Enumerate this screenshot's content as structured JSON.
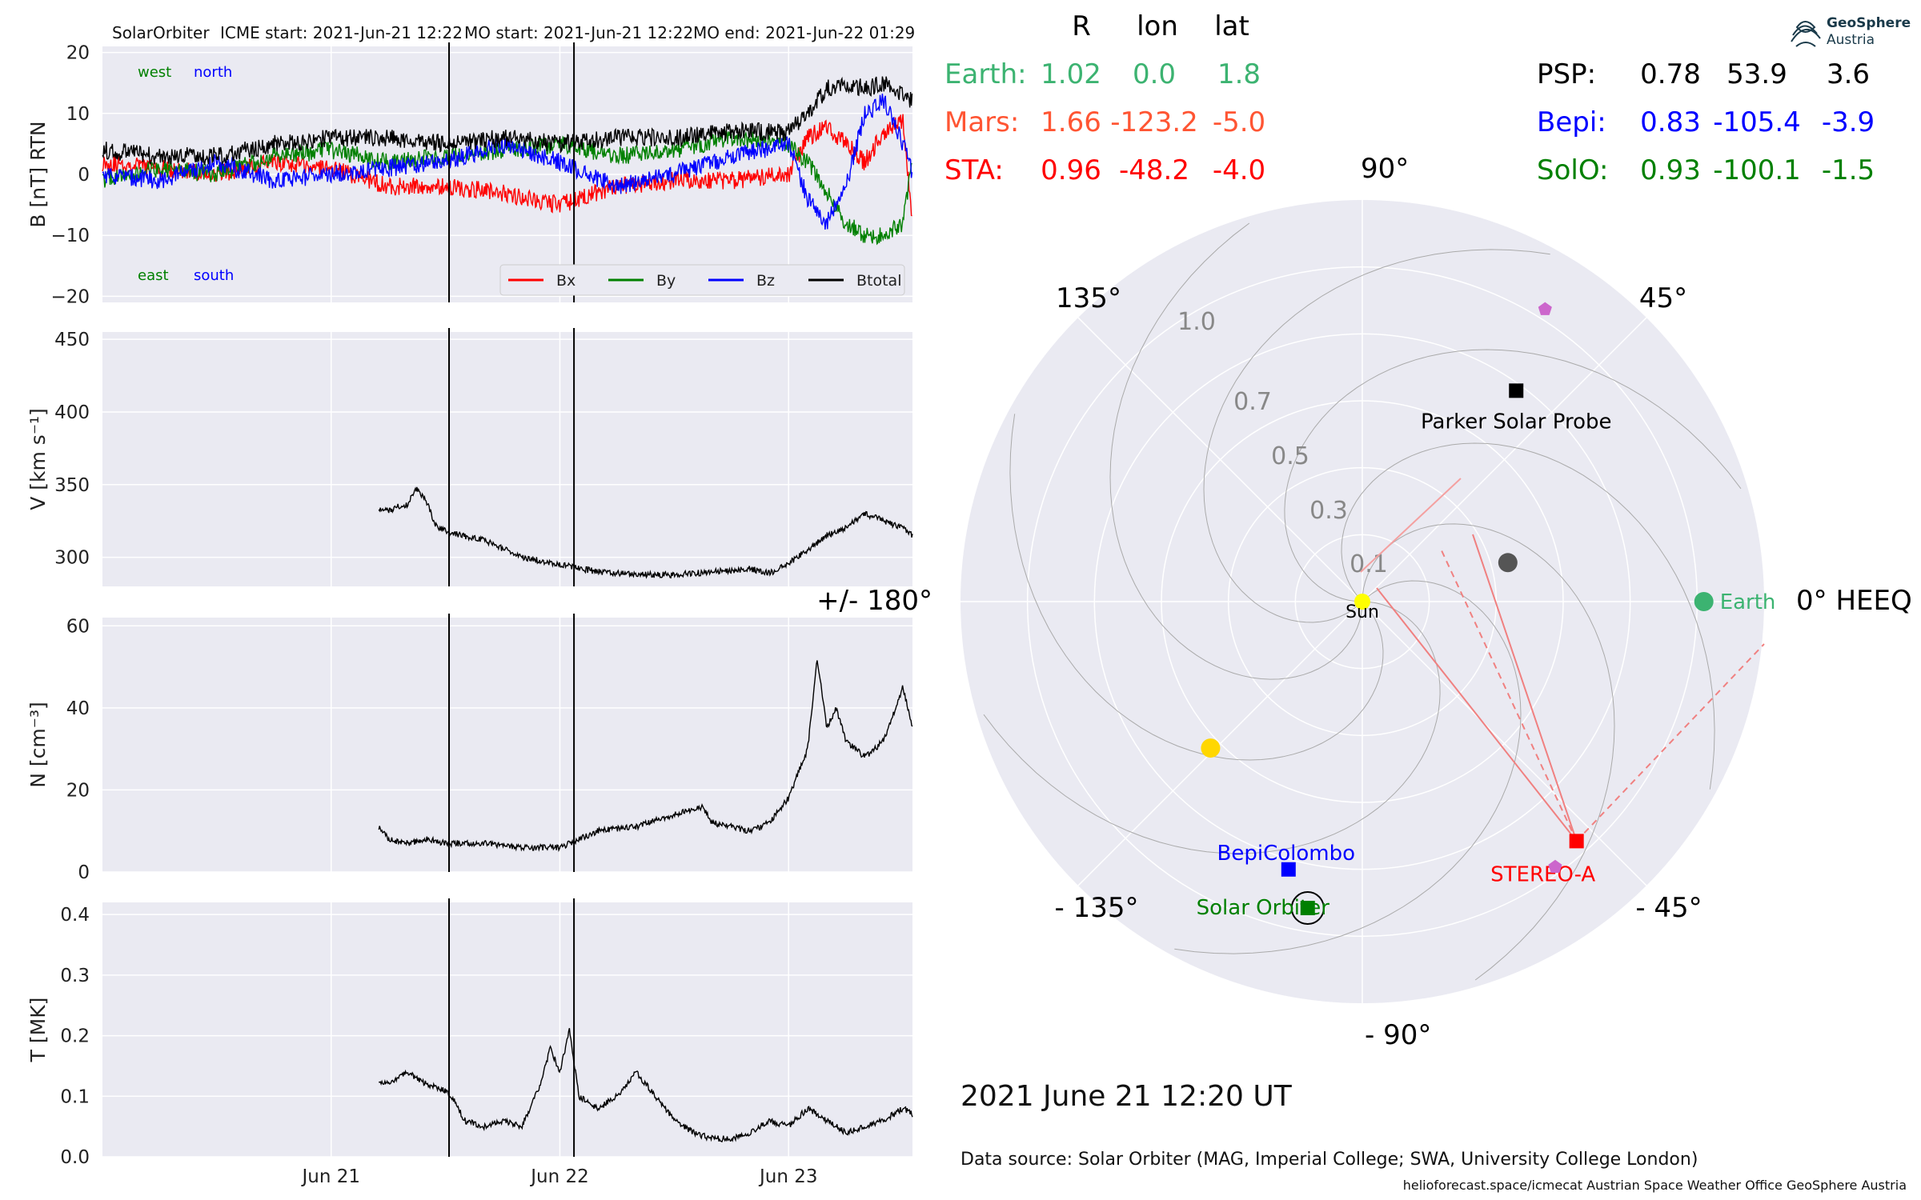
{
  "header": {
    "spacecraft": "SolarOrbiter",
    "icme_start": "ICME start: 2021-Jun-21 12:22",
    "mo_start": "MO start: 2021-Jun-21 12:22",
    "mo_end": "MO end: 2021-Jun-22 01:29"
  },
  "logo": {
    "line1": "GeoSphere",
    "line2": "Austria"
  },
  "colors": {
    "bx": "#ff0000",
    "by": "#008000",
    "bz": "#0000ff",
    "btotal": "#000000",
    "earth": "#3cb371",
    "mars": "#ff5533",
    "sta": "#ff0000",
    "psp": "#000000",
    "bepi": "#0000ff",
    "solo": "#008000",
    "panel_bg": "#eaeaf2"
  },
  "chart_data": [
    {
      "type": "line",
      "panel": "magnetic_field",
      "ylabel": "B [nT] RTN",
      "ylim": [
        -21,
        21
      ],
      "yticks": [
        "20",
        "10",
        "0",
        "−10",
        "−20"
      ],
      "xlim": [
        "2021-06-20 00:00",
        "2021-06-23 13:00"
      ],
      "xticks": [],
      "corner_labels": {
        "west": "west",
        "north": "north",
        "east": "east",
        "south": "south"
      },
      "legend": [
        "Bx",
        "By",
        "Bz",
        "Btotal"
      ],
      "legend_position": "lower-right",
      "vlines": [
        "2021-06-21 12:22",
        "2021-06-22 01:29"
      ],
      "series": [
        {
          "name": "Bx",
          "x_hours": [
            0,
            6,
            12,
            18,
            24,
            30,
            36,
            42,
            48,
            54,
            60,
            66,
            72,
            74,
            76,
            78,
            80,
            82,
            84,
            85
          ],
          "values": [
            2,
            1,
            0,
            2,
            1,
            -2,
            -2,
            -3,
            -5,
            -2,
            -1,
            -1,
            0,
            6,
            8,
            5,
            2,
            7,
            9,
            -8
          ]
        },
        {
          "name": "By",
          "x_hours": [
            0,
            6,
            12,
            18,
            24,
            30,
            36,
            42,
            48,
            54,
            60,
            66,
            72,
            74,
            76,
            78,
            80,
            82,
            84,
            85
          ],
          "values": [
            -1,
            1,
            0,
            3,
            4,
            2,
            3,
            4,
            5,
            3,
            4,
            6,
            5,
            2,
            -3,
            -8,
            -10,
            -10,
            -8,
            2
          ]
        },
        {
          "name": "Bz",
          "x_hours": [
            0,
            6,
            12,
            18,
            24,
            30,
            36,
            42,
            48,
            54,
            60,
            66,
            72,
            74,
            76,
            78,
            80,
            82,
            84,
            85
          ],
          "values": [
            0,
            -1,
            2,
            -1,
            0,
            1,
            2,
            5,
            2,
            -2,
            0,
            3,
            5,
            -4,
            -8,
            -2,
            10,
            12,
            5,
            0
          ]
        },
        {
          "name": "Btotal",
          "x_hours": [
            0,
            6,
            12,
            18,
            24,
            30,
            36,
            42,
            48,
            54,
            60,
            66,
            72,
            74,
            76,
            78,
            80,
            82,
            84,
            85
          ],
          "values": [
            4,
            3,
            3,
            5,
            6,
            6,
            5,
            6,
            5,
            6,
            6,
            7,
            7,
            10,
            14,
            15,
            14,
            15,
            13,
            12
          ]
        }
      ]
    },
    {
      "type": "line",
      "panel": "velocity",
      "ylabel": "V [km s⁻¹]",
      "ylim": [
        280,
        455
      ],
      "yticks": [
        "450",
        "400",
        "350",
        "300"
      ],
      "vlines": [
        "2021-06-21 12:22",
        "2021-06-22 01:29"
      ],
      "series": [
        {
          "name": "V",
          "x_hours": [
            29,
            30,
            31,
            32,
            33,
            34,
            35,
            36,
            37,
            40,
            44,
            48,
            52,
            56,
            60,
            64,
            68,
            70,
            72,
            74,
            76,
            78,
            80,
            82,
            84,
            85
          ],
          "values": [
            333,
            332,
            335,
            336,
            348,
            338,
            322,
            318,
            316,
            312,
            300,
            295,
            290,
            288,
            288,
            290,
            292,
            289,
            296,
            305,
            315,
            320,
            330,
            325,
            320,
            315
          ]
        }
      ]
    },
    {
      "type": "line",
      "panel": "density",
      "ylabel": "N [cm⁻³]",
      "ylim": [
        0,
        62
      ],
      "yticks": [
        "60",
        "40",
        "20",
        "0"
      ],
      "vlines": [
        "2021-06-21 12:22",
        "2021-06-22 01:29"
      ],
      "series": [
        {
          "name": "N",
          "x_hours": [
            29,
            30,
            32,
            34,
            36,
            40,
            44,
            48,
            50,
            52,
            56,
            60,
            63,
            64,
            66,
            68,
            70,
            72,
            74,
            75,
            76,
            77,
            78,
            80,
            82,
            84,
            85
          ],
          "values": [
            11,
            8,
            7,
            8,
            7,
            7,
            6,
            6,
            8,
            10,
            11,
            14,
            16,
            12,
            11,
            10,
            12,
            18,
            30,
            52,
            35,
            40,
            32,
            28,
            32,
            45,
            35
          ]
        }
      ]
    },
    {
      "type": "line",
      "panel": "temperature",
      "ylabel": "T [MK]",
      "ylim": [
        0,
        0.42
      ],
      "yticks": [
        "0.4",
        "0.3",
        "0.2",
        "0.1",
        "0.0"
      ],
      "xticks": [
        "Jun 21",
        "Jun 22",
        "Jun 23"
      ],
      "vlines": [
        "2021-06-21 12:22",
        "2021-06-22 01:29"
      ],
      "series": [
        {
          "name": "T",
          "x_hours": [
            29,
            30,
            32,
            34,
            36,
            37,
            38,
            40,
            42,
            44,
            46,
            47,
            48,
            49,
            50,
            52,
            54,
            56,
            58,
            60,
            62,
            64,
            66,
            68,
            70,
            72,
            74,
            76,
            78,
            80,
            82,
            84,
            85
          ],
          "values": [
            0.12,
            0.12,
            0.14,
            0.12,
            0.11,
            0.09,
            0.06,
            0.05,
            0.06,
            0.05,
            0.12,
            0.18,
            0.14,
            0.21,
            0.1,
            0.08,
            0.1,
            0.14,
            0.1,
            0.06,
            0.04,
            0.03,
            0.03,
            0.04,
            0.06,
            0.05,
            0.08,
            0.06,
            0.04,
            0.05,
            0.06,
            0.08,
            0.07
          ]
        }
      ]
    },
    {
      "type": "scatter",
      "panel": "polar_positions",
      "projection": "polar",
      "angle_labels": [
        "0° HEEQ",
        "45°",
        "90°",
        "135°",
        "+/- 180°",
        "- 135°",
        "- 90°",
        "- 45°"
      ],
      "radial_labels": [
        "0.1",
        "0.3",
        "0.5",
        "0.7",
        "1.0"
      ],
      "rmax": 1.2,
      "points": [
        {
          "name": "Sun",
          "r": 0.0,
          "lon": 0,
          "color": "#ffff00",
          "marker": "circle",
          "label": "Sun"
        },
        {
          "name": "Earth",
          "r": 1.02,
          "lon": 0.0,
          "color": "#3cb371",
          "marker": "circle",
          "label": "Earth"
        },
        {
          "name": "Parker Solar Probe",
          "r": 0.78,
          "lon": 53.9,
          "color": "#000000",
          "marker": "square",
          "label": "Parker Solar Probe"
        },
        {
          "name": "STEREO-A",
          "r": 0.96,
          "lon": -48.2,
          "color": "#ff0000",
          "marker": "square",
          "label": "STEREO-A"
        },
        {
          "name": "BepiColombo",
          "r": 0.83,
          "lon": -105.4,
          "color": "#0000ff",
          "marker": "square",
          "label": "BepiColombo"
        },
        {
          "name": "Solar Orbiter",
          "r": 0.93,
          "lon": -100.1,
          "color": "#008000",
          "marker": "square",
          "label": "Solar Orbiter"
        },
        {
          "name": "Mars-like yellow",
          "r": 0.63,
          "lon": -136,
          "color": "#ffd700",
          "marker": "circle",
          "label": ""
        },
        {
          "name": "grey body",
          "r": 0.45,
          "lon": 15,
          "color": "#555555",
          "marker": "circle",
          "label": ""
        },
        {
          "name": "pentagon-1",
          "r": 1.03,
          "lon": 58,
          "color": "#cc66cc",
          "marker": "pentagon",
          "label": ""
        },
        {
          "name": "pentagon-2",
          "r": 0.98,
          "lon": -54,
          "color": "#cc66cc",
          "marker": "pentagon",
          "label": ""
        }
      ]
    }
  ],
  "positions_table": {
    "headers": [
      "R",
      "lon",
      "lat"
    ],
    "rows_left": [
      {
        "name": "Earth:",
        "r": "1.02",
        "lon": "0.0",
        "lat": "1.8",
        "color": "#3cb371"
      },
      {
        "name": "Mars:",
        "r": "1.66",
        "lon": "-123.2",
        "lat": "-5.0",
        "color": "#ff5533"
      },
      {
        "name": "STA:",
        "r": "0.96",
        "lon": "-48.2",
        "lat": "-4.0",
        "color": "#ff0000"
      }
    ],
    "rows_right": [
      {
        "name": "PSP:",
        "r": "0.78",
        "lon": "53.9",
        "lat": "3.6",
        "color": "#000000"
      },
      {
        "name": "Bepi:",
        "r": "0.83",
        "lon": "-105.4",
        "lat": "-3.9",
        "color": "#0000ff"
      },
      {
        "name": "SolO:",
        "r": "0.93",
        "lon": "-100.1",
        "lat": "-1.5",
        "color": "#008000"
      }
    ]
  },
  "footer": {
    "date": "2021 June 21  12:20 UT",
    "source": "Data source: Solar Orbiter (MAG, Imperial College; SWA, University College London)",
    "credits": "helioforecast.space/icmecat   Austrian Space Weather Office   GeoSphere Austria"
  }
}
